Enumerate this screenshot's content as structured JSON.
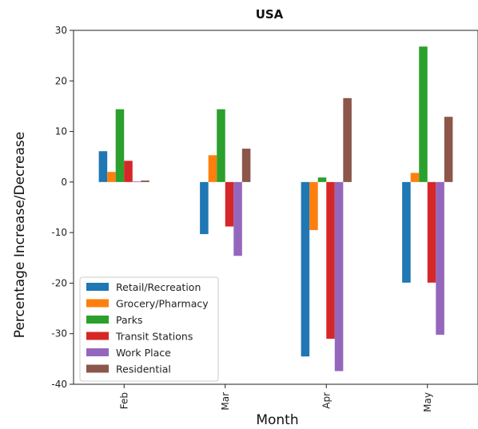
{
  "chart_data": {
    "type": "bar",
    "title": "USA",
    "xlabel": "Month",
    "ylabel": "Percentage Increase/Decrease",
    "categories": [
      "Feb",
      "Mar",
      "Apr",
      "May"
    ],
    "ylim": [
      -40,
      30
    ],
    "yticks": [
      30,
      20,
      10,
      0,
      -10,
      -20,
      -30,
      -40
    ],
    "grid": false,
    "legend_position": "lower-left",
    "series": [
      {
        "name": "Retail/Recreation",
        "color": "#1f77b4",
        "values": [
          6.1,
          -10.3,
          -34.5,
          -19.9
        ]
      },
      {
        "name": "Grocery/Pharmacy",
        "color": "#ff7f0e",
        "values": [
          2.0,
          5.3,
          -9.5,
          1.8
        ]
      },
      {
        "name": "Parks",
        "color": "#2ca02c",
        "values": [
          14.4,
          14.4,
          0.9,
          26.8
        ]
      },
      {
        "name": "Transit Stations",
        "color": "#d62728",
        "values": [
          4.2,
          -8.8,
          -31.0,
          -19.9
        ]
      },
      {
        "name": "Work Place",
        "color": "#9467bd",
        "values": [
          0.1,
          -14.6,
          -37.4,
          -30.2
        ]
      },
      {
        "name": "Residential",
        "color": "#8c564b",
        "values": [
          0.3,
          6.6,
          16.6,
          12.9
        ]
      }
    ]
  }
}
